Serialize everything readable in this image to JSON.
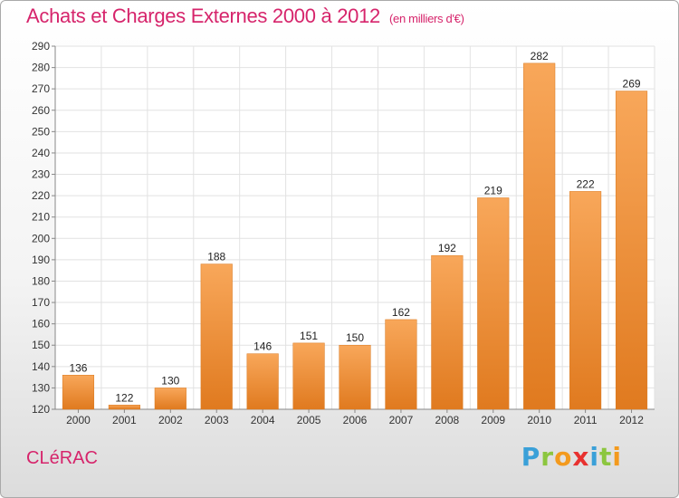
{
  "title": "Achats et Charges Externes 2000 à 2012",
  "unit_label": "(en milliers d'€)",
  "town": "CLéRAC",
  "logo": {
    "letters": [
      "P",
      "r",
      "o",
      "x",
      "i",
      "t",
      "i"
    ],
    "colors": [
      "#3aa0d8",
      "#8cc63f",
      "#f39a1e",
      "#e8312f",
      "#3aa0d8",
      "#8cc63f",
      "#f39a1e"
    ]
  },
  "colors": {
    "title": "#d6246b",
    "bar_light": "#f8a75a",
    "bar_dark": "#e07a1f"
  },
  "chart_data": {
    "type": "bar",
    "categories": [
      "2000",
      "2001",
      "2002",
      "2003",
      "2004",
      "2005",
      "2006",
      "2007",
      "2008",
      "2009",
      "2010",
      "2011",
      "2012"
    ],
    "values": [
      136,
      122,
      130,
      188,
      146,
      151,
      150,
      162,
      192,
      219,
      282,
      222,
      269
    ],
    "title": "Achats et Charges Externes 2000 à 2012",
    "ylim": [
      120,
      290
    ],
    "yticks": [
      120,
      130,
      140,
      150,
      160,
      170,
      180,
      190,
      200,
      210,
      220,
      230,
      240,
      250,
      260,
      270,
      280,
      290
    ],
    "grid": true,
    "data_labels": true
  }
}
